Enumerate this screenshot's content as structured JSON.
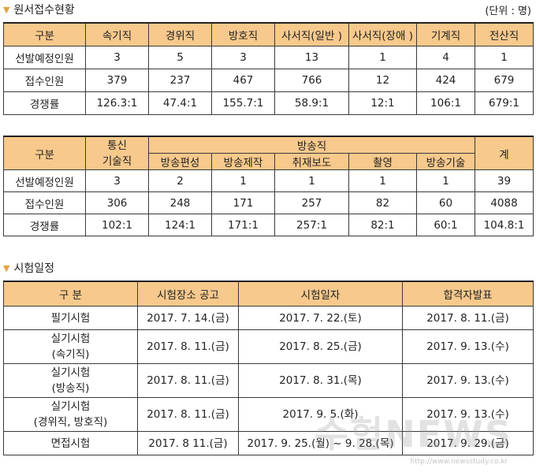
{
  "section1": {
    "title": "원서접수현황",
    "unit": "(단위 : 명)"
  },
  "table1": {
    "headers": [
      "구분",
      "속기직",
      "경위직",
      "방호직",
      "사서직(일반 )",
      "사서직(장애 )",
      "기계직",
      "전산직"
    ],
    "rows": [
      [
        "선발예정인원",
        "3",
        "5",
        "3",
        "13",
        "1",
        "4",
        "1"
      ],
      [
        "접수인원",
        "379",
        "237",
        "467",
        "766",
        "12",
        "424",
        "679"
      ],
      [
        "경쟁률",
        "126.3:1",
        "47.4:1",
        "155.7:1",
        "58.9:1",
        "12:1",
        "106:1",
        "679:1"
      ]
    ]
  },
  "table2": {
    "header_gubun": "구분",
    "header_tongsin": "통신\n기술직",
    "header_bangsong": "방송직",
    "header_total": "계",
    "sub_headers": [
      "방송편성",
      "방송제작",
      "취재보도",
      "촬영",
      "방송기술"
    ],
    "rows": [
      [
        "선발예정인원",
        "3",
        "2",
        "1",
        "1",
        "1",
        "1",
        "39"
      ],
      [
        "접수인원",
        "306",
        "248",
        "171",
        "257",
        "82",
        "60",
        "4088"
      ],
      [
        "경쟁률",
        "102:1",
        "124:1",
        "171:1",
        "257:1",
        "82:1",
        "60:1",
        "104.8:1"
      ]
    ]
  },
  "section2": {
    "title": "시험일정"
  },
  "table3": {
    "headers": [
      "구 분",
      "시험장소 공고",
      "시험일자",
      "합격자발표"
    ],
    "rows": [
      [
        "필기시험",
        "2017. 7. 14.(금)",
        "2017. 7. 22.(토)",
        "2017. 8. 11.(금)"
      ],
      [
        "실기시험\n(속기직)",
        "2017. 8. 11.(금)",
        "2017. 8. 25.(금)",
        "2017. 9. 13.(수)"
      ],
      [
        "실기시험\n(방송직)",
        "2017. 8. 11.(금)",
        "2017. 8. 31.(목)",
        "2017. 9. 13.(수)"
      ],
      [
        "실기시험\n(경위직, 방호직)",
        "2017. 8. 11.(금)",
        "2017. 9. 5.(화)",
        "2017. 9. 13.(수)"
      ],
      [
        "면접시험",
        "2017. 8 11.(금)",
        "2017. 9. 25.(월) ~ 9. 28.(목)",
        "2017. 9. 29.(금)"
      ]
    ]
  },
  "watermark": {
    "logo": "수험NEWS",
    "url": "http://www.newsstudy.co.kr"
  }
}
